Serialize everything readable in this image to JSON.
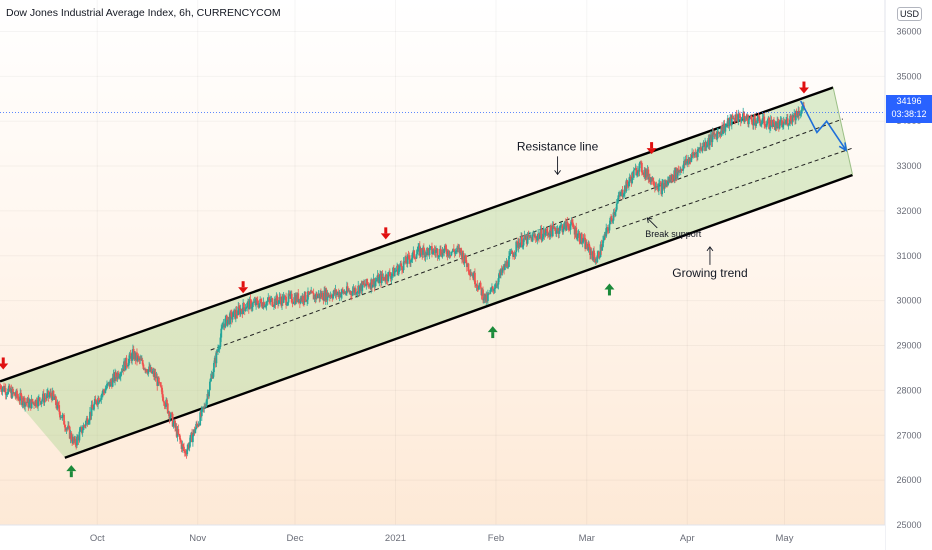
{
  "header": {
    "title": "Dow Jones Industrial Average Index, 6h, CURRENCYCOM",
    "currency": "USD"
  },
  "price_label": {
    "value": "34196",
    "countdown": "03:38:12"
  },
  "colors": {
    "up": "#26a69a",
    "down": "#ef5350",
    "channel_fill": "rgba(178,214,150,0.45)",
    "marker_down": "#e01010",
    "marker_up": "#1b8a3a",
    "projection": "#1e6fd9"
  },
  "chart_data": {
    "type": "candlestick",
    "x_ticks": [
      "Oct",
      "Nov",
      "Dec",
      "2021",
      "Feb",
      "Mar",
      "Apr",
      "May"
    ],
    "y_ticks": [
      "25000",
      "26000",
      "27000",
      "28000",
      "29000",
      "30000",
      "31000",
      "32000",
      "33000",
      "34000",
      "35000",
      "36000"
    ],
    "ylim": [
      25000,
      36300
    ],
    "x_range": [
      "2020-09-01",
      "2021-06-01"
    ],
    "last_price": 34196,
    "price_path": [
      {
        "date": "2020-09-01",
        "value": 28100
      },
      {
        "date": "2020-09-10",
        "value": 27700
      },
      {
        "date": "2020-09-17",
        "value": 27900
      },
      {
        "date": "2020-09-24",
        "value": 26800
      },
      {
        "date": "2020-10-01",
        "value": 27800
      },
      {
        "date": "2020-10-12",
        "value": 28800
      },
      {
        "date": "2020-10-19",
        "value": 28300
      },
      {
        "date": "2020-10-28",
        "value": 26600
      },
      {
        "date": "2020-11-03",
        "value": 27600
      },
      {
        "date": "2020-11-09",
        "value": 29500
      },
      {
        "date": "2020-11-16",
        "value": 29900
      },
      {
        "date": "2020-11-25",
        "value": 30000
      },
      {
        "date": "2020-12-07",
        "value": 30100
      },
      {
        "date": "2020-12-18",
        "value": 30200
      },
      {
        "date": "2020-12-31",
        "value": 30600
      },
      {
        "date": "2021-01-08",
        "value": 31100
      },
      {
        "date": "2021-01-21",
        "value": 31100
      },
      {
        "date": "2021-01-29",
        "value": 30000
      },
      {
        "date": "2021-02-08",
        "value": 31300
      },
      {
        "date": "2021-02-24",
        "value": 31700
      },
      {
        "date": "2021-03-04",
        "value": 30900
      },
      {
        "date": "2021-03-11",
        "value": 32300
      },
      {
        "date": "2021-03-17",
        "value": 33000
      },
      {
        "date": "2021-03-24",
        "value": 32500
      },
      {
        "date": "2021-04-05",
        "value": 33400
      },
      {
        "date": "2021-04-16",
        "value": 34100
      },
      {
        "date": "2021-04-30",
        "value": 33900
      },
      {
        "date": "2021-05-07",
        "value": 34300
      }
    ],
    "channel": {
      "resistance": [
        {
          "date": "2020-09-01",
          "value": 28200
        },
        {
          "date": "2021-05-16",
          "value": 34750
        }
      ],
      "support": [
        {
          "date": "2020-09-21",
          "value": 26500
        },
        {
          "date": "2021-05-22",
          "value": 32800
        }
      ],
      "mid_dashed": [
        {
          "date": "2020-11-05",
          "value": 28900
        },
        {
          "date": "2021-05-19",
          "value": 34050
        }
      ],
      "lower_dashed": [
        {
          "date": "2021-03-10",
          "value": 31600
        },
        {
          "date": "2021-05-22",
          "value": 33400
        }
      ]
    },
    "projection": [
      {
        "date": "2021-05-06",
        "value": 34450
      },
      {
        "date": "2021-05-11",
        "value": 33750
      },
      {
        "date": "2021-05-14",
        "value": 34000
      },
      {
        "date": "2021-05-20",
        "value": 33350
      }
    ],
    "markers": [
      {
        "type": "down",
        "date": "2020-09-02",
        "value": 28600
      },
      {
        "type": "up",
        "date": "2020-09-23",
        "value": 26200
      },
      {
        "type": "down",
        "date": "2020-11-15",
        "value": 30300
      },
      {
        "type": "down",
        "date": "2020-12-29",
        "value": 31500
      },
      {
        "type": "up",
        "date": "2021-01-31",
        "value": 29300
      },
      {
        "type": "down",
        "date": "2021-03-21",
        "value": 33400
      },
      {
        "type": "up",
        "date": "2021-03-08",
        "value": 30250
      },
      {
        "type": "down",
        "date": "2021-05-07",
        "value": 34750
      }
    ],
    "annotations": [
      {
        "text": "Resistance line",
        "date": "2021-02-20",
        "value": 33350,
        "arrow": "down"
      },
      {
        "text": "Break support",
        "date": "2021-03-28",
        "value": 31420,
        "arrow": "up-left"
      },
      {
        "text": "Growing trend",
        "date": "2021-04-08",
        "value": 30530,
        "arrow": "up"
      }
    ]
  }
}
